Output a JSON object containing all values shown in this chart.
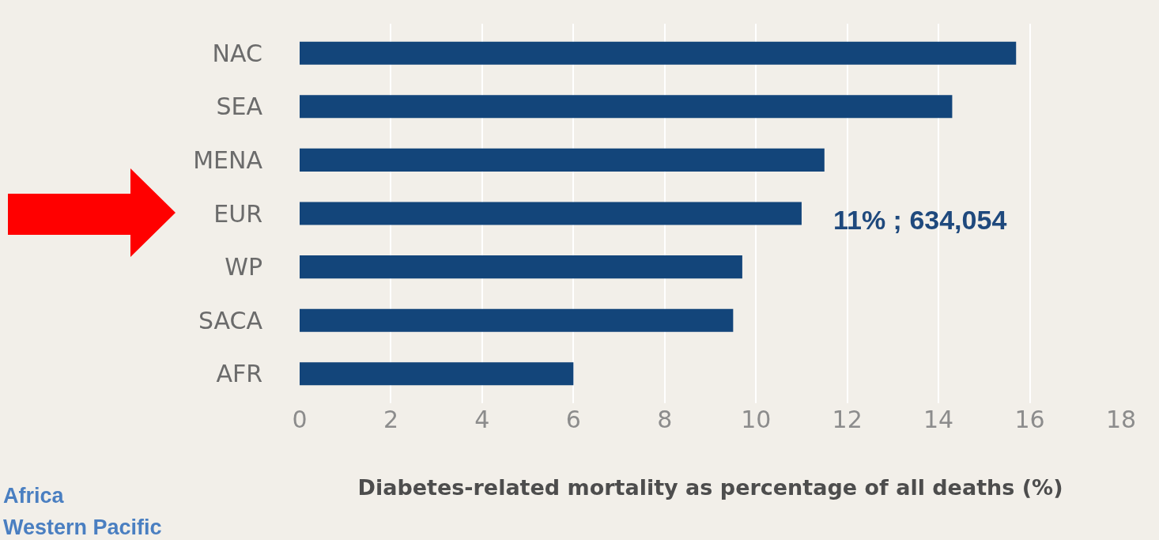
{
  "chart_data": {
    "type": "bar",
    "orientation": "horizontal",
    "categories": [
      "NAC",
      "SEA",
      "MENA",
      "EUR",
      "WP",
      "SACA",
      "AFR"
    ],
    "values": [
      15.7,
      14.3,
      11.5,
      11.0,
      9.7,
      9.5,
      6.0
    ],
    "color": "#13457a",
    "xlim": [
      0,
      18
    ],
    "xticks": [
      0,
      2,
      4,
      6,
      8,
      10,
      12,
      14,
      16,
      18
    ],
    "grid": "x",
    "xlabel": "Diabetes-related mortality as percentage of all deaths (%)",
    "annotations": [
      {
        "text": "11% ; 634,054",
        "x": 11.0,
        "y": "EUR"
      },
      "Africa",
      "Western Pacific"
    ]
  }
}
